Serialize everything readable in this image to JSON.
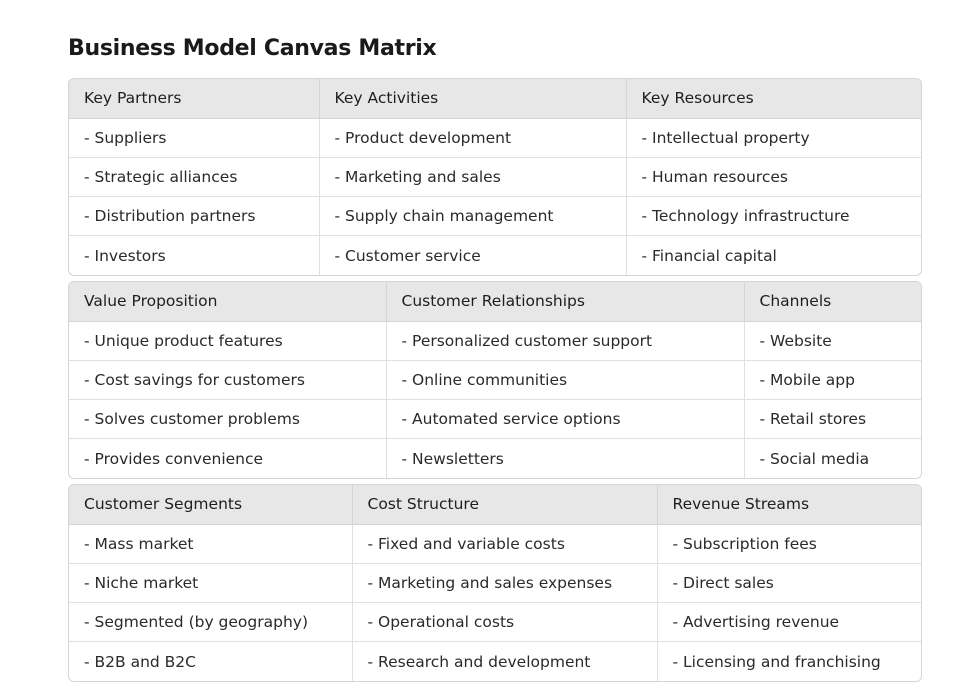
{
  "title": "Business Model Canvas Matrix",
  "tables": [
    {
      "headers": [
        "Key Partners",
        "Key Activities",
        "Key Resources"
      ],
      "rows": [
        [
          "- Suppliers",
          "- Product development",
          "- Intellectual property"
        ],
        [
          "- Strategic alliances",
          "- Marketing and sales",
          "- Human resources"
        ],
        [
          "- Distribution partners",
          "- Supply chain management",
          "- Technology infrastructure"
        ],
        [
          "- Investors",
          "- Customer service",
          "- Financial capital"
        ]
      ]
    },
    {
      "headers": [
        "Value Proposition",
        "Customer Relationships",
        "Channels"
      ],
      "rows": [
        [
          "- Unique product features",
          "- Personalized customer support",
          "- Website"
        ],
        [
          "- Cost savings for customers",
          "- Online communities",
          "- Mobile app"
        ],
        [
          "- Solves customer problems",
          "- Automated service options",
          "- Retail stores"
        ],
        [
          "- Provides convenience",
          "- Newsletters",
          "- Social media"
        ]
      ]
    },
    {
      "headers": [
        "Customer Segments",
        "Cost Structure",
        "Revenue Streams"
      ],
      "rows": [
        [
          "- Mass market",
          "- Fixed and variable costs",
          "- Subscription fees"
        ],
        [
          "- Niche market",
          "- Marketing and sales expenses",
          "- Direct sales"
        ],
        [
          "- Segmented (by geography)",
          "- Operational costs",
          "- Advertising revenue"
        ],
        [
          "- B2B and B2C",
          "- Research and development",
          "- Licensing and franchising"
        ]
      ]
    }
  ]
}
